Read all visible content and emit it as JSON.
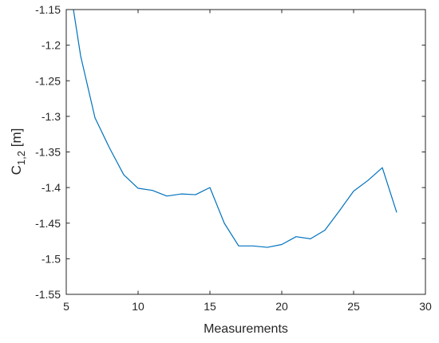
{
  "chart_data": {
    "type": "line",
    "title": "",
    "xlabel": "Measurements",
    "ylabel": {
      "main": "C",
      "sub": "1,2",
      "unit": " [m]"
    },
    "xlim": [
      5,
      30
    ],
    "ylim": [
      -1.55,
      -1.15
    ],
    "xticks": [
      5,
      10,
      15,
      20,
      25,
      30
    ],
    "xtick_labels": [
      "5",
      "10",
      "15",
      "20",
      "25",
      "30"
    ],
    "yticks": [
      -1.15,
      -1.2,
      -1.25,
      -1.3,
      -1.35,
      -1.4,
      -1.45,
      -1.5,
      -1.55
    ],
    "ytick_labels": [
      "-1.15",
      "-1.2",
      "-1.25",
      "-1.3",
      "-1.35",
      "-1.4",
      "-1.45",
      "-1.5",
      "-1.55"
    ],
    "grid": false,
    "series": [
      {
        "color": "#0072bd",
        "x": [
          5.5,
          6,
          7,
          8,
          9,
          10,
          11,
          12,
          13,
          14,
          15,
          16,
          17,
          18,
          19,
          20,
          21,
          22,
          23,
          24,
          25,
          26,
          27,
          28
        ],
        "values": [
          -1.15,
          -1.215,
          -1.302,
          -1.344,
          -1.382,
          -1.401,
          -1.404,
          -1.412,
          -1.409,
          -1.41,
          -1.4,
          -1.45,
          -1.482,
          -1.482,
          -1.484,
          -1.48,
          -1.469,
          -1.472,
          -1.46,
          -1.433,
          -1.405,
          -1.39,
          -1.372,
          -1.435
        ]
      }
    ]
  }
}
